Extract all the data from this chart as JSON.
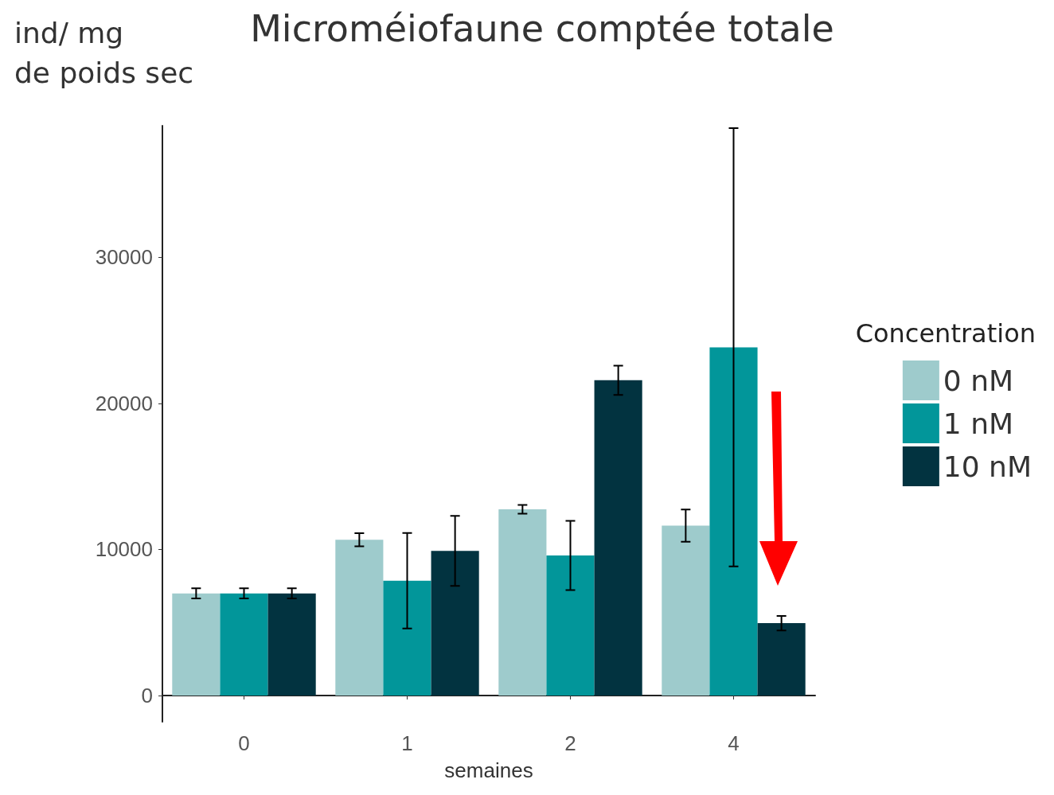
{
  "chart_data": {
    "type": "bar",
    "title": "Microméiofaune comptée totale",
    "xlabel": "semaines",
    "ylabel": "ind/ mg\nde poids sec",
    "legend_title": "Concentration",
    "categories": [
      "0",
      "1",
      "2",
      "4"
    ],
    "series": [
      {
        "name": "0 nM",
        "color": "#9ecbcc",
        "values": [
          6990,
          10660,
          12750,
          11630
        ],
        "errors": [
          350,
          450,
          300,
          1100
        ]
      },
      {
        "name": "1 nM",
        "color": "#02969a",
        "values": [
          6990,
          7860,
          9590,
          23830
        ],
        "errors": [
          350,
          3270,
          2370,
          15000
        ]
      },
      {
        "name": "10 nM",
        "color": "#023340",
        "values": [
          6990,
          9900,
          21580,
          4950
        ],
        "errors": [
          350,
          2400,
          1000,
          500
        ]
      }
    ],
    "ylim": [
      -1800,
      39000
    ],
    "yticks": [
      0,
      10000,
      20000,
      30000
    ],
    "grid": false,
    "legend": "right"
  }
}
